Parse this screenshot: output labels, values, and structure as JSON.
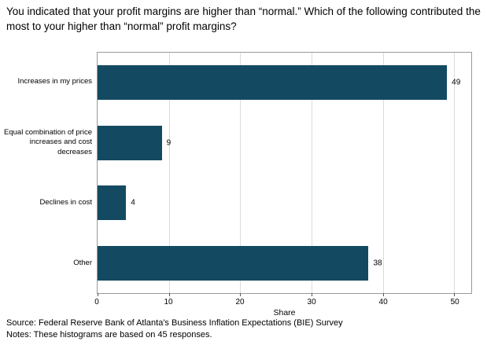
{
  "title": "You indicated that your profit margins are higher than “normal.” Which of the following contributed the most to your higher than “normal” profit margins?",
  "chart_data": {
    "type": "bar",
    "orientation": "horizontal",
    "categories": [
      "Increases in my prices",
      "Equal combination of price increases and cost decreases",
      "Declines in cost",
      "Other"
    ],
    "values": [
      49,
      9,
      4,
      38
    ],
    "xlabel": "Share",
    "xlim": [
      0,
      50
    ],
    "xticks": [
      0,
      10,
      20,
      30,
      40,
      50
    ],
    "bar_color": "#134a62",
    "grid": "vertical",
    "legend": "none"
  },
  "footer": {
    "source": "Source: Federal Reserve Bank of Atlanta's Business Inflation Expectations (BIE) Survey",
    "notes": "Notes: These histograms are based on 45 responses."
  }
}
